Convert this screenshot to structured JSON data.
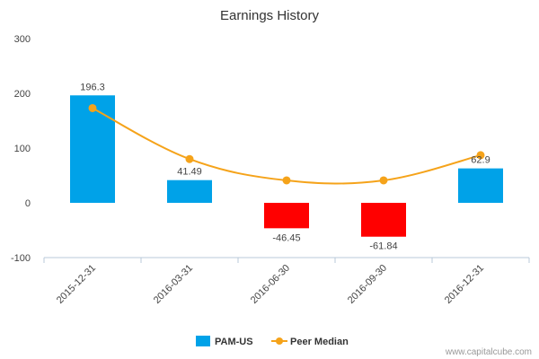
{
  "chart_data": {
    "type": "bar",
    "title": "Earnings History",
    "categories": [
      "2015-12-31",
      "2016-03-31",
      "2016-06-30",
      "2016-09-30",
      "2016-12-31"
    ],
    "series": [
      {
        "name": "PAM-US",
        "kind": "bar",
        "values": [
          196.3,
          41.49,
          -46.45,
          -61.84,
          62.9
        ],
        "data_labels": [
          "196.3",
          "41.49",
          "-46.45",
          "-61.84",
          "62.9"
        ],
        "color_positive": "#00a2e8",
        "color_negative": "#ff0000"
      },
      {
        "name": "Peer Median",
        "kind": "line",
        "values": [
          173,
          80,
          41,
          41,
          87
        ],
        "color": "#f5a31a"
      }
    ],
    "ylim": [
      -100,
      300
    ],
    "yticks": [
      "300",
      "200",
      "100",
      "0",
      "-100"
    ],
    "grid": false,
    "legend": "bottom-center"
  },
  "footer": {
    "source": "www.capitalcube.com"
  }
}
